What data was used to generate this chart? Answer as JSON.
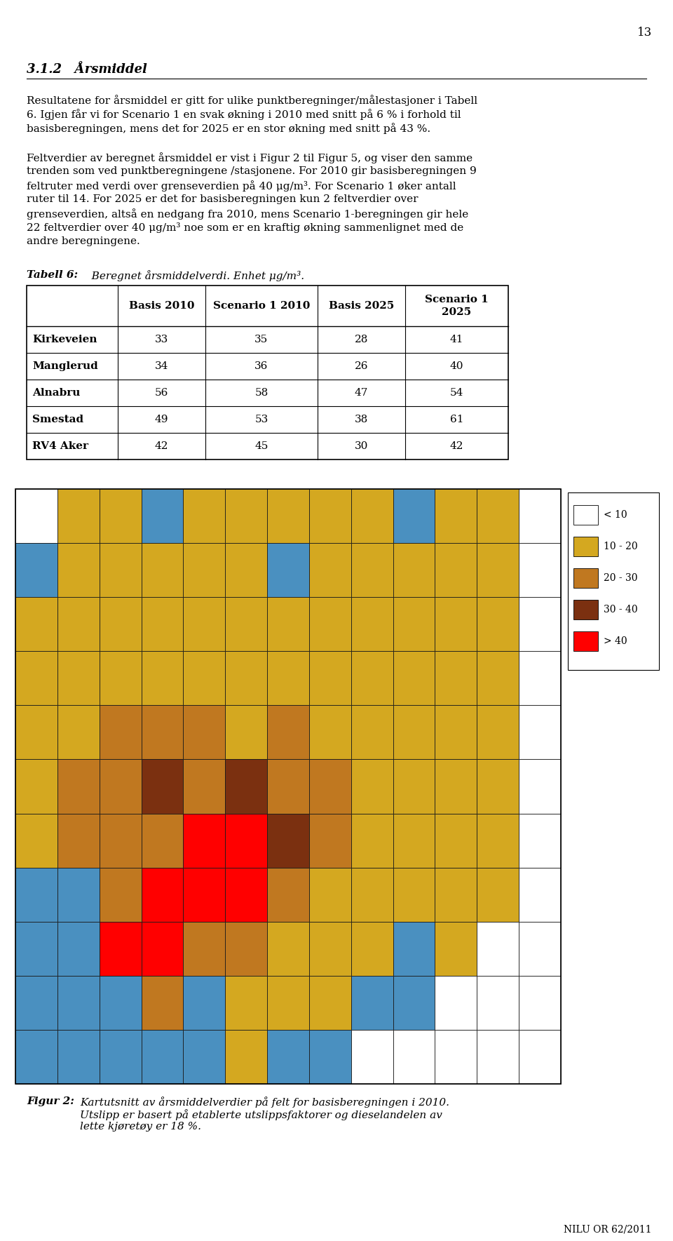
{
  "page_number": "13",
  "section_heading": "3.1.2   Årsmiddel",
  "para1_lines": [
    "Resultatene for årsmiddel er gitt for ulike punktberegninger/målestasjoner i Tabell",
    "6. Igjen får vi for Scenario 1 en svak økning i 2010 med snitt på 6 % i forhold til",
    "basisberegningen, mens det for 2025 er en stor økning med snitt på 43 %."
  ],
  "para2_lines": [
    "Feltverdier av beregnet årsmiddel er vist i Figur 2 til Figur 5, og viser den samme",
    "trenden som ved punktberegningene /stasjonene. For 2010 gir basisberegningen 9",
    "feltruter med verdi over grenseverdien på 40 μg/m³. For Scenario 1 øker antall",
    "ruter til 14. For 2025 er det for basisberegningen kun 2 feltverdier over",
    "grenseverdien, altså en nedgang fra 2010, mens Scenario 1-beregningen gir hele",
    "22 feltverdier over 40 μg/m³ noe som er en kraftig økning sammenlignet med de",
    "andre beregningene."
  ],
  "table_caption_bold": "Tabell 6:",
  "table_caption_rest": "   Beregnet årsmiddelverdi. Enhet μg/m³.",
  "table_headers": [
    "",
    "Basis 2010",
    "Scenario 1 2010",
    "Basis 2025",
    "Scenario 1\n2025"
  ],
  "table_rows": [
    [
      "Kirkeveien",
      "33",
      "35",
      "28",
      "41"
    ],
    [
      "Manglerud",
      "34",
      "36",
      "26",
      "40"
    ],
    [
      "Alnabru",
      "56",
      "58",
      "47",
      "54"
    ],
    [
      "Smestad",
      "49",
      "53",
      "38",
      "61"
    ],
    [
      "RV4 Aker",
      "42",
      "45",
      "30",
      "42"
    ]
  ],
  "map_legend_labels": [
    "< 10",
    "10 - 20",
    "20 - 30",
    "30 - 40",
    "> 40"
  ],
  "map_legend_colors": [
    "#FFFFFF",
    "#D4A820",
    "#C07820",
    "#7B3010",
    "#FF0000"
  ],
  "figure_caption_bold": "Figur 2:",
  "figure_caption_lines": [
    "Kartutsnitt av årsmiddelverdier på felt for basisberegningen i 2010.",
    "Utslipp er basert på etablerte utslippsfaktorer og dieselandelen av",
    "lette kjøretøy er 18 %."
  ],
  "footer_text": "NILU OR 62/2011",
  "map_grid": [
    [
      "W",
      "Y",
      "Y",
      "BL",
      "Y",
      "Y",
      "Y",
      "Y",
      "Y",
      "BL",
      "Y",
      "Y",
      "W"
    ],
    [
      "BL",
      "Y",
      "Y",
      "Y",
      "Y",
      "Y",
      "BL",
      "Y",
      "Y",
      "Y",
      "Y",
      "Y",
      "W"
    ],
    [
      "Y",
      "Y",
      "Y",
      "Y",
      "Y",
      "Y",
      "Y",
      "Y",
      "Y",
      "Y",
      "Y",
      "Y",
      "W"
    ],
    [
      "Y",
      "Y",
      "Y",
      "Y",
      "Y",
      "Y",
      "Y",
      "Y",
      "Y",
      "Y",
      "Y",
      "Y",
      "W"
    ],
    [
      "Y",
      "Y",
      "LB",
      "LB",
      "LB",
      "Y",
      "LB",
      "Y",
      "Y",
      "Y",
      "Y",
      "Y",
      "W"
    ],
    [
      "Y",
      "LB",
      "LB",
      "DB",
      "LB",
      "DB",
      "LB",
      "LB",
      "Y",
      "Y",
      "Y",
      "Y",
      "W"
    ],
    [
      "Y",
      "LB",
      "LB",
      "LB",
      "R",
      "R",
      "DB",
      "LB",
      "Y",
      "Y",
      "Y",
      "Y",
      "W"
    ],
    [
      "BL",
      "BL",
      "LB",
      "R",
      "R",
      "R",
      "LB",
      "Y",
      "Y",
      "Y",
      "Y",
      "Y",
      "W"
    ],
    [
      "BL",
      "BL",
      "R",
      "R",
      "LB",
      "LB",
      "Y",
      "Y",
      "Y",
      "BL",
      "Y",
      "W",
      "W"
    ],
    [
      "BL",
      "BL",
      "BL",
      "LB",
      "BL",
      "Y",
      "Y",
      "Y",
      "BL",
      "BL",
      "W",
      "W",
      "W"
    ],
    [
      "BL",
      "BL",
      "BL",
      "BL",
      "BL",
      "Y",
      "BL",
      "BL",
      "W",
      "W",
      "W",
      "W",
      "W"
    ]
  ],
  "map_color_dict": {
    "W": "#FFFFFF",
    "Y": "#D4A820",
    "LB": "#C07820",
    "DB": "#7B3010",
    "R": "#FF0000",
    "BL": "#4A90C0"
  }
}
